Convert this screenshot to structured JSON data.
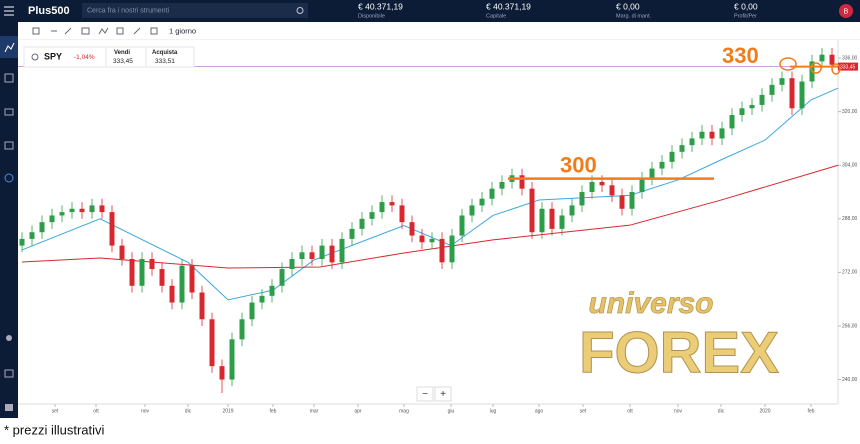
{
  "header": {
    "logo": "Plus500",
    "search": "Cerca fra i nostri strumenti",
    "account": "B",
    "stats": [
      {
        "value": "€ 40.371,19",
        "label": "Disponibile"
      },
      {
        "value": "€ 40.371,19",
        "label": "Capitale"
      },
      {
        "value": "€ 0,00",
        "label": "Marg. di mant."
      },
      {
        "value": "€ 0,00",
        "label": "Profit/Per"
      }
    ]
  },
  "toolbar": {
    "timeframe": "1 giorno"
  },
  "instrument": {
    "symbol": "SPY",
    "change": "-1,04%",
    "sell_label": "Vendi",
    "sell": "333,45",
    "buy_label": "Acquista",
    "buy": "333,51"
  },
  "zoom": {
    "out": "−",
    "in": "+"
  },
  "watermark": {
    "line1": "universo",
    "line2": "FOREX"
  },
  "footer": "* prezzi illustrativi",
  "chart_data": {
    "type": "candlestick",
    "xlim": [
      0,
      81.6
    ],
    "ylim": [
      232.7,
      340.2
    ],
    "xticks": [
      {
        "value": 3.3,
        "label": "set"
      },
      {
        "value": 7.4,
        "label": "ott"
      },
      {
        "value": 12.3,
        "label": "nov"
      },
      {
        "value": 16.6,
        "label": "dic"
      },
      {
        "value": 20.6,
        "label": "2019"
      },
      {
        "value": 25.1,
        "label": "feb"
      },
      {
        "value": 29.2,
        "label": "mar"
      },
      {
        "value": 33.6,
        "label": "apr"
      },
      {
        "value": 38.2,
        "label": "mag"
      },
      {
        "value": 42.9,
        "label": "giu"
      },
      {
        "value": 47.1,
        "label": "lug"
      },
      {
        "value": 51.7,
        "label": "ago"
      },
      {
        "value": 56.1,
        "label": "set"
      },
      {
        "value": 60.8,
        "label": "ott"
      },
      {
        "value": 65.6,
        "label": "nov"
      },
      {
        "value": 69.9,
        "label": "dic"
      },
      {
        "value": 74.3,
        "label": "2020"
      },
      {
        "value": 78.9,
        "label": "feb"
      }
    ],
    "yticks": [
      {
        "value": 240,
        "label": "240,00"
      },
      {
        "value": 256,
        "label": "256,00"
      },
      {
        "value": 272,
        "label": "272,00"
      },
      {
        "value": 288,
        "label": "288,00"
      },
      {
        "value": 304,
        "label": "304,00"
      },
      {
        "value": 320,
        "label": "320,00"
      },
      {
        "value": 336,
        "label": "336,00"
      }
    ],
    "up_color": "#2e9d4a",
    "down_color": "#d8282f",
    "x": [
      0,
      1,
      2,
      3,
      4,
      5,
      6,
      7,
      8,
      9,
      10,
      11,
      12,
      13,
      14,
      15,
      16,
      17,
      18,
      19,
      20,
      21,
      22,
      23,
      24,
      25,
      26,
      27,
      28,
      29,
      30,
      31,
      32,
      33,
      34,
      35,
      36,
      37,
      38,
      39,
      40,
      41,
      42,
      43,
      44,
      45,
      46,
      47,
      48,
      49,
      50,
      51,
      52,
      53,
      54,
      55,
      56,
      57,
      58,
      59,
      60,
      61,
      62,
      63,
      64,
      65,
      66,
      67,
      68,
      69,
      70,
      71,
      72,
      73,
      74,
      75,
      76,
      77,
      78,
      79,
      80,
      81
    ],
    "open": [
      280,
      282,
      284,
      287,
      289,
      290,
      291,
      290,
      292,
      290,
      280,
      276,
      268,
      276,
      273,
      268,
      263,
      274,
      266,
      258,
      244,
      240,
      252,
      258,
      263,
      265,
      268,
      273,
      276,
      278,
      276,
      280,
      275,
      282,
      285,
      288,
      290,
      293,
      292,
      287,
      283,
      281,
      282,
      275,
      283,
      289,
      292,
      294,
      297,
      299,
      301,
      297,
      284,
      291,
      285,
      289,
      292,
      296,
      299,
      298,
      295,
      291,
      296,
      300,
      303,
      305,
      308,
      310,
      312,
      314,
      312,
      315,
      319,
      321,
      322,
      325,
      328,
      330,
      321,
      329,
      335,
      337
    ],
    "high": [
      284,
      286,
      289,
      291,
      292,
      293,
      293,
      294,
      294,
      292,
      282,
      278,
      278,
      278,
      275,
      270,
      276,
      276,
      268,
      260,
      246,
      254,
      260,
      265,
      267,
      270,
      275,
      278,
      280,
      280,
      282,
      282,
      284,
      287,
      290,
      292,
      295,
      295,
      294,
      289,
      285,
      284,
      284,
      285,
      291,
      294,
      296,
      299,
      301,
      303,
      303,
      299,
      293,
      293,
      291,
      294,
      298,
      301,
      301,
      300,
      297,
      298,
      302,
      305,
      307,
      310,
      312,
      314,
      316,
      316,
      317,
      321,
      323,
      324,
      327,
      330,
      332,
      332,
      331,
      337,
      339,
      339
    ],
    "low": [
      278,
      280,
      282,
      285,
      287,
      288,
      288,
      288,
      288,
      278,
      274,
      266,
      266,
      271,
      266,
      261,
      261,
      264,
      256,
      242,
      236,
      238,
      250,
      256,
      261,
      263,
      266,
      271,
      274,
      274,
      274,
      273,
      273,
      280,
      283,
      286,
      288,
      290,
      285,
      281,
      279,
      279,
      273,
      273,
      281,
      287,
      290,
      292,
      295,
      297,
      295,
      282,
      282,
      283,
      283,
      287,
      290,
      294,
      296,
      293,
      289,
      289,
      294,
      298,
      301,
      303,
      306,
      308,
      310,
      310,
      310,
      313,
      317,
      319,
      320,
      323,
      326,
      319,
      319,
      327,
      333,
      332
    ],
    "close": [
      282,
      284,
      287,
      289,
      290,
      291,
      290,
      292,
      290,
      280,
      276,
      268,
      276,
      273,
      268,
      263,
      274,
      266,
      258,
      244,
      240,
      252,
      258,
      263,
      265,
      268,
      273,
      276,
      278,
      276,
      280,
      275,
      282,
      285,
      288,
      290,
      293,
      292,
      287,
      283,
      281,
      282,
      275,
      283,
      289,
      292,
      294,
      297,
      299,
      301,
      297,
      284,
      291,
      285,
      289,
      292,
      296,
      299,
      298,
      295,
      291,
      296,
      300,
      303,
      305,
      308,
      310,
      312,
      314,
      312,
      315,
      319,
      321,
      322,
      325,
      328,
      330,
      321,
      329,
      335,
      337,
      334
    ],
    "overlays": [
      {
        "color": "#3aa8e0",
        "x": [
          0,
          7.8,
          16.6,
          20.6,
          25.1,
          29.2,
          38.2,
          42.9,
          47.1,
          51.7,
          60.8,
          65.6,
          69.9,
          74.3,
          78.9,
          81.6
        ],
        "values": [
          278.7,
          288,
          275,
          263.8,
          266.7,
          275.7,
          286,
          280,
          289,
          293.6,
          295,
          299.6,
          305.6,
          311.5,
          323.5,
          327
        ]
      },
      {
        "color": "#d8282f",
        "x": [
          0,
          7.8,
          20.6,
          29.8,
          38.2,
          47.1,
          60.8,
          69.9,
          81.6
        ],
        "values": [
          275.1,
          276.3,
          273.3,
          273.6,
          277.8,
          281.7,
          286.1,
          293.6,
          304
        ]
      }
    ],
    "current_price": 333.45,
    "current_price_label": "333,45",
    "annotations": [
      {
        "text": "300",
        "value": 300,
        "x": [
          48.6,
          69.2
        ],
        "color": "#f07d1a"
      },
      {
        "text": "330",
        "color": "#f07d1a"
      }
    ]
  }
}
